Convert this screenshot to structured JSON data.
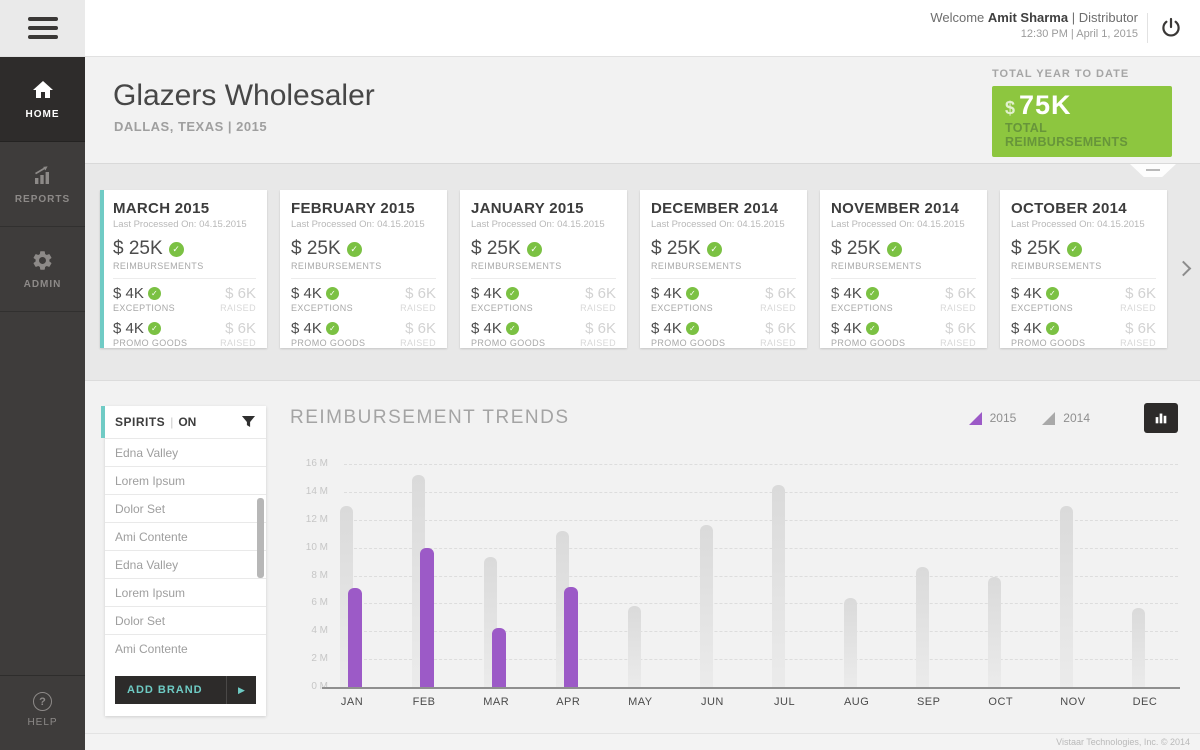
{
  "topbar": {
    "welcome_prefix": "Welcome",
    "user_name": "Amit Sharma",
    "separator": "|",
    "user_role": "Distributor",
    "datetime": "12:30 PM | April 1, 2015"
  },
  "sidebar": {
    "items": [
      {
        "label": "HOME",
        "icon": "home-icon",
        "active": true
      },
      {
        "label": "REPORTS",
        "icon": "reports-icon",
        "active": false
      },
      {
        "label": "ADMIN",
        "icon": "gear-icon",
        "active": false
      }
    ],
    "help_label": "HELP"
  },
  "header": {
    "title": "Glazers Wholesaler",
    "subtitle": "DALLAS, TEXAS | 2015",
    "ytd_label": "TOTAL YEAR TO DATE",
    "ytd_currency": "$",
    "ytd_value": "75K",
    "ytd_caption": "TOTAL REIMBURSEMENTS"
  },
  "month_cards": [
    {
      "title": "MARCH 2015",
      "processed": "Last Processed On: 04.15.2015",
      "accent": true,
      "reimbursements": {
        "value": "$ 25K",
        "label": "REIMBURSEMENTS"
      },
      "exceptions": {
        "value": "$ 4K",
        "label": "EXCEPTIONS",
        "raised_value": "$ 6K",
        "raised_label": "RAISED"
      },
      "promo_goods": {
        "value": "$ 4K",
        "label": "PROMO GOODS",
        "raised_value": "$ 6K",
        "raised_label": "RAISED"
      }
    },
    {
      "title": "FEBRUARY 2015",
      "processed": "Last Processed On: 04.15.2015",
      "accent": false,
      "reimbursements": {
        "value": "$ 25K",
        "label": "REIMBURSEMENTS"
      },
      "exceptions": {
        "value": "$ 4K",
        "label": "EXCEPTIONS",
        "raised_value": "$ 6K",
        "raised_label": "RAISED"
      },
      "promo_goods": {
        "value": "$ 4K",
        "label": "PROMO GOODS",
        "raised_value": "$ 6K",
        "raised_label": "RAISED"
      }
    },
    {
      "title": "JANUARY 2015",
      "processed": "Last Processed On: 04.15.2015",
      "accent": false,
      "reimbursements": {
        "value": "$ 25K",
        "label": "REIMBURSEMENTS"
      },
      "exceptions": {
        "value": "$ 4K",
        "label": "EXCEPTIONS",
        "raised_value": "$ 6K",
        "raised_label": "RAISED"
      },
      "promo_goods": {
        "value": "$ 4K",
        "label": "PROMO GOODS",
        "raised_value": "$ 6K",
        "raised_label": "RAISED"
      }
    },
    {
      "title": "DECEMBER 2014",
      "processed": "Last Processed On: 04.15.2015",
      "accent": false,
      "reimbursements": {
        "value": "$ 25K",
        "label": "REIMBURSEMENTS"
      },
      "exceptions": {
        "value": "$ 4K",
        "label": "EXCEPTIONS",
        "raised_value": "$ 6K",
        "raised_label": "RAISED"
      },
      "promo_goods": {
        "value": "$ 4K",
        "label": "PROMO GOODS",
        "raised_value": "$ 6K",
        "raised_label": "RAISED"
      }
    },
    {
      "title": "NOVEMBER 2014",
      "processed": "Last Processed On: 04.15.2015",
      "accent": false,
      "reimbursements": {
        "value": "$ 25K",
        "label": "REIMBURSEMENTS"
      },
      "exceptions": {
        "value": "$ 4K",
        "label": "EXCEPTIONS",
        "raised_value": "$ 6K",
        "raised_label": "RAISED"
      },
      "promo_goods": {
        "value": "$ 4K",
        "label": "PROMO GOODS",
        "raised_value": "$ 6K",
        "raised_label": "RAISED"
      }
    },
    {
      "title": "OCTOBER 2014",
      "processed": "Last Processed On: 04.15.2015",
      "accent": false,
      "reimbursements": {
        "value": "$ 25K",
        "label": "REIMBURSEMENTS"
      },
      "exceptions": {
        "value": "$ 4K",
        "label": "EXCEPTIONS",
        "raised_value": "$ 6K",
        "raised_label": "RAISED"
      },
      "promo_goods": {
        "value": "$ 4K",
        "label": "PROMO GOODS",
        "raised_value": "$ 6K",
        "raised_label": "RAISED"
      }
    }
  ],
  "brand_panel": {
    "category": "SPIRITS",
    "separator": "|",
    "state": "ON",
    "items": [
      "Edna Valley",
      "Lorem Ipsum",
      "Dolor Set",
      "Ami Contente",
      "Edna Valley",
      "Lorem Ipsum",
      "Dolor Set",
      "Ami Contente"
    ],
    "add_button_label": "ADD BRAND"
  },
  "chart_data": {
    "type": "bar",
    "title": "REIMBURSEMENT TRENDS",
    "categories": [
      "JAN",
      "FEB",
      "MAR",
      "APR",
      "MAY",
      "JUN",
      "JUL",
      "AUG",
      "SEP",
      "OCT",
      "NOV",
      "DEC"
    ],
    "series": [
      {
        "name": "2014",
        "color": "#e0e0e0",
        "values": [
          13.0,
          15.2,
          9.3,
          11.2,
          5.8,
          11.6,
          14.5,
          6.4,
          8.6,
          7.9,
          13.0,
          5.7
        ]
      },
      {
        "name": "2015",
        "color": "#9c5ac7",
        "values": [
          7.1,
          10.0,
          4.2,
          7.2,
          null,
          null,
          null,
          null,
          null,
          null,
          null,
          null
        ]
      }
    ],
    "legend": [
      {
        "label": "2015",
        "color": "#9c5ac7"
      },
      {
        "label": "2014",
        "color": "#a9a9a9"
      }
    ],
    "legend_position": "top-right",
    "y_ticks": [
      "16 M",
      "14 M",
      "12 M",
      "10 M",
      "8 M",
      "6 M",
      "4 M",
      "2 M",
      "0 M"
    ],
    "ylim": [
      0,
      16
    ],
    "unit": "M",
    "grid": "dashed-horizontal",
    "xlabel": "",
    "ylabel": ""
  },
  "footer": {
    "copyright": "Vistaar Technologies, Inc. © 2014"
  },
  "colors": {
    "accent_teal": "#70cbc5",
    "badge_green": "#8dc63f",
    "check_green": "#7bc143",
    "bar_purple": "#9c5ac7",
    "bar_gray": "#e0e0e0",
    "sidebar_dark": "#3e3c3b",
    "button_dark": "#2d2b2a"
  }
}
